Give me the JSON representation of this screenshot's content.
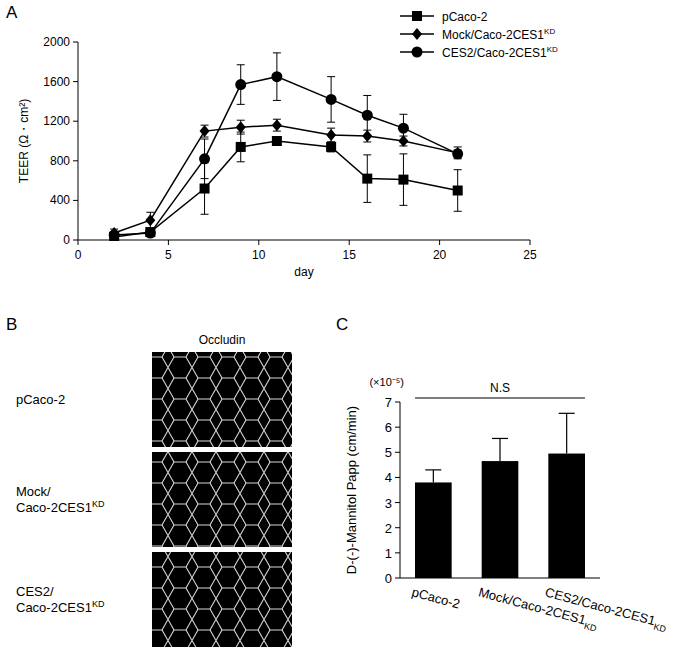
{
  "chart_data": [
    {
      "type": "line",
      "panel": "A",
      "x_label": "day",
      "y_label": "TEER (Ω・cm²)",
      "x": [
        2,
        4,
        7,
        9,
        11,
        14,
        16,
        18,
        21
      ],
      "series": [
        {
          "name": "pCaco-2",
          "color": "#000000",
          "marker": "square",
          "values": [
            30,
            80,
            520,
            940,
            1000,
            940,
            620,
            610,
            500
          ],
          "errors": [
            20,
            30,
            260,
            150,
            40,
            50,
            240,
            260,
            210
          ]
        },
        {
          "name": "Mock/Caco-2CES1KD",
          "color": "#000000",
          "marker": "diamond",
          "values": [
            70,
            200,
            1100,
            1140,
            1160,
            1060,
            1050,
            1000,
            880
          ],
          "errors": [
            40,
            80,
            60,
            70,
            60,
            70,
            60,
            50,
            60
          ]
        },
        {
          "name": "CES2/Caco-2CES1KD",
          "color": "#000000",
          "marker": "circle",
          "values": [
            50,
            70,
            820,
            1570,
            1650,
            1420,
            1260,
            1130,
            870
          ],
          "errors": [
            30,
            30,
            200,
            200,
            240,
            230,
            200,
            140,
            40
          ]
        }
      ],
      "xlim": [
        0,
        25
      ],
      "xticks": [
        0,
        5,
        10,
        15,
        20,
        25
      ],
      "ylim": [
        0,
        2000
      ],
      "yticks": [
        0,
        400,
        800,
        1200,
        1600,
        2000
      ],
      "grid": false,
      "legend": "top-right"
    },
    {
      "type": "image",
      "panel": "B",
      "title": "Occludin",
      "categories": [
        "pCaco-2",
        "Mock/Caco-2CES1KD",
        "CES2/Caco-2CES1KD"
      ]
    },
    {
      "type": "bar",
      "panel": "C",
      "y_label": "D-(-)-Mannitol Papp (cm/min)",
      "categories": [
        "pCaco-2",
        "Mock/Caco-2CES1KD",
        "CES2/Caco-2CES1KD"
      ],
      "values": [
        3.8,
        4.65,
        4.95
      ],
      "errors": [
        0.5,
        0.9,
        1.6
      ],
      "color": "#000000",
      "ylim": [
        0,
        7
      ],
      "yticks": [
        0,
        1,
        2,
        3,
        4,
        5,
        6,
        7
      ],
      "grid": false,
      "annotations": [
        "(×10⁻⁵)",
        "N.S"
      ]
    }
  ]
}
